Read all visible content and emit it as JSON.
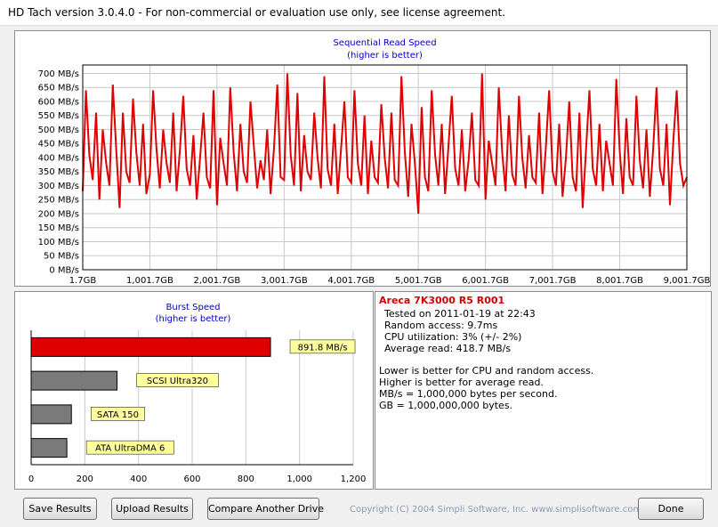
{
  "window": {
    "title": "HD Tach version 3.0.4.0  - For non-commercial or evaluation use only, see license agreement."
  },
  "colors": {
    "series": "#e00000",
    "chart_title": "#0000c0",
    "info_title": "#d40000",
    "bar_other": "#7a7a7a",
    "label_bg": "#ffff9e"
  },
  "chart_data": [
    {
      "type": "line",
      "title": "Sequential Read Speed",
      "subtitle": "(higher is better)",
      "y_tick_labels": [
        "0 MB/s",
        "50 MB/s",
        "100 MB/s",
        "150 MB/s",
        "200 MB/s",
        "250 MB/s",
        "300 MB/s",
        "350 MB/s",
        "400 MB/s",
        "450 MB/s",
        "500 MB/s",
        "550 MB/s",
        "600 MB/s",
        "650 MB/s",
        "700 MB/s"
      ],
      "x_tick_labels": [
        "1.7GB",
        "1,001.7GB",
        "2,001.7GB",
        "3,001.7GB",
        "4,001.7GB",
        "5,001.7GB",
        "6,001.7GB",
        "7,001.7GB",
        "8,001.7GB",
        "9,001.7GB"
      ],
      "xlim": [
        1.7,
        9001.7
      ],
      "ylim": [
        0,
        730
      ],
      "grid": true,
      "series": [
        {
          "x": [
            1.7,
            50,
            100,
            150,
            200,
            250,
            300,
            350,
            400,
            450,
            500,
            550,
            600,
            650,
            700,
            750,
            800,
            850,
            900,
            950,
            1001.7,
            1050,
            1100,
            1150,
            1200,
            1250,
            1300,
            1350,
            1400,
            1450,
            1500,
            1550,
            1600,
            1650,
            1700,
            1750,
            1800,
            1850,
            1900,
            1950,
            2001.7,
            2050,
            2100,
            2150,
            2200,
            2250,
            2300,
            2350,
            2400,
            2450,
            2500,
            2550,
            2600,
            2650,
            2700,
            2750,
            2800,
            2850,
            2900,
            2950,
            3001.7,
            3050,
            3100,
            3150,
            3200,
            3250,
            3300,
            3350,
            3400,
            3450,
            3500,
            3550,
            3600,
            3650,
            3700,
            3750,
            3800,
            3850,
            3900,
            3950,
            4001.7,
            4050,
            4100,
            4150,
            4200,
            4250,
            4300,
            4350,
            4400,
            4450,
            4500,
            4550,
            4600,
            4650,
            4700,
            4750,
            4800,
            4850,
            4900,
            4950,
            5001.7,
            5050,
            5100,
            5150,
            5200,
            5250,
            5300,
            5350,
            5400,
            5450,
            5500,
            5550,
            5600,
            5650,
            5700,
            5750,
            5800,
            5850,
            5900,
            5950,
            6001.7,
            6050,
            6100,
            6150,
            6200,
            6250,
            6300,
            6350,
            6400,
            6450,
            6500,
            6550,
            6600,
            6650,
            6700,
            6750,
            6800,
            6850,
            6900,
            6950,
            7001.7,
            7050,
            7100,
            7150,
            7200,
            7250,
            7300,
            7350,
            7400,
            7450,
            7500,
            7550,
            7600,
            7650,
            7700,
            7750,
            7800,
            7850,
            7900,
            7950,
            8001.7,
            8050,
            8100,
            8150,
            8200,
            8250,
            8300,
            8350,
            8400,
            8450,
            8500,
            8550,
            8600,
            8650,
            8700,
            8750,
            8800,
            8850,
            8900,
            8950,
            9001.7
          ],
          "values": [
            280,
            640,
            410,
            320,
            560,
            250,
            500,
            380,
            300,
            660,
            430,
            220,
            560,
            350,
            310,
            610,
            420,
            300,
            520,
            270,
            340,
            640,
            430,
            290,
            500,
            380,
            310,
            560,
            280,
            430,
            620,
            360,
            300,
            480,
            250,
            400,
            560,
            330,
            290,
            640,
            230,
            470,
            380,
            300,
            650,
            420,
            280,
            520,
            350,
            310,
            600,
            440,
            290,
            390,
            320,
            500,
            270,
            430,
            660,
            330,
            320,
            700,
            410,
            300,
            630,
            280,
            480,
            350,
            320,
            560,
            400,
            290,
            690,
            360,
            300,
            520,
            270,
            430,
            600,
            330,
            310,
            640,
            380,
            300,
            550,
            270,
            460,
            330,
            310,
            590,
            400,
            290,
            560,
            320,
            300,
            690,
            420,
            260,
            520,
            380,
            200,
            580,
            330,
            280,
            640,
            410,
            300,
            520,
            270,
            440,
            620,
            360,
            300,
            500,
            280,
            390,
            560,
            320,
            300,
            700,
            250,
            460,
            380,
            300,
            650,
            420,
            280,
            550,
            340,
            300,
            620,
            400,
            290,
            480,
            330,
            310,
            560,
            270,
            430,
            640,
            350,
            300,
            520,
            260,
            400,
            600,
            330,
            280,
            560,
            220,
            430,
            640,
            360,
            300,
            520,
            280,
            460,
            380,
            300,
            680,
            420,
            270,
            540,
            330,
            300,
            620,
            390,
            290,
            500,
            260,
            430,
            650,
            360,
            300,
            520,
            230,
            460,
            640,
            380,
            300,
            330
          ]
        }
      ]
    },
    {
      "type": "bar",
      "title": "Burst Speed",
      "subtitle": "(higher is better)",
      "categories": [
        "891.8 MB/s",
        "SCSI Ultra320",
        "SATA 150",
        "ATA UltraDMA 6"
      ],
      "values": [
        891.8,
        320,
        150,
        133
      ],
      "xlim": [
        0,
        1200
      ],
      "x_tick_labels": [
        "0",
        "200",
        "400",
        "600",
        "800",
        "1,000",
        "1,200"
      ],
      "grid": true
    }
  ],
  "info": {
    "title": "Areca 7K3000 R5 R001",
    "tested_on": "Tested on 2011-01-19 at 22:43",
    "random_access": "Random access: 9.7ms",
    "cpu": "CPU utilization: 3% (+/- 2%)",
    "average_read": "Average read: 418.7 MB/s",
    "notes": [
      "Lower is better for CPU and random access.",
      "Higher is better for average read.",
      "MB/s = 1,000,000 bytes per second.",
      "GB = 1,000,000,000 bytes."
    ]
  },
  "buttons": {
    "save": "Save Results",
    "upload": "Upload Results",
    "compare": "Compare Another Drive",
    "done": "Done"
  },
  "footer": {
    "copyright": "Copyright (C) 2004 Simpli Software, Inc. www.simplisoftware.com"
  }
}
